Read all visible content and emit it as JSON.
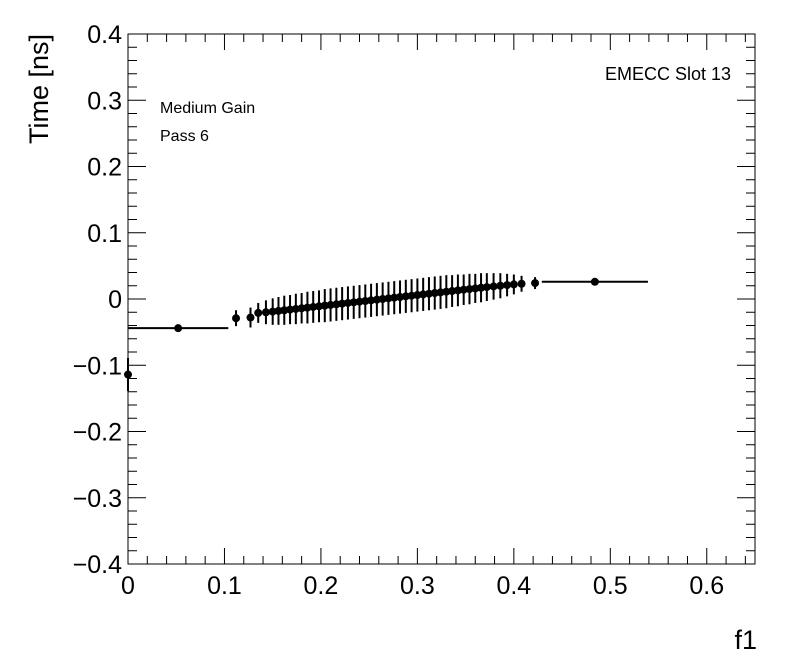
{
  "chart_data": {
    "type": "scatter",
    "title": "",
    "xlabel": "f1",
    "ylabel": "Time [ns]",
    "xlim": [
      0,
      0.65
    ],
    "ylim": [
      -0.4,
      0.4
    ],
    "x_ticks": [
      0,
      0.1,
      0.2,
      0.3,
      0.4,
      0.5,
      0.6
    ],
    "x_tick_labels": [
      "0",
      "0.1",
      "0.2",
      "0.3",
      "0.4",
      "0.5",
      "0.6"
    ],
    "y_ticks": [
      -0.4,
      -0.3,
      -0.2,
      -0.1,
      0,
      0.1,
      0.2,
      0.3,
      0.4
    ],
    "y_tick_labels": [
      "−0.4",
      "−0.3",
      "−0.2",
      "−0.1",
      "0",
      "0.1",
      "0.2",
      "0.3",
      "0.4"
    ],
    "grid": false,
    "annotations": [
      "Medium Gain",
      "Pass 6",
      "EMECC Slot 13"
    ],
    "series": [
      {
        "points": [
          {
            "x": 0.0,
            "y": -0.114,
            "xerr": 0.0,
            "yerr": 0.025
          },
          {
            "x": 0.052,
            "y": -0.044,
            "xerr": 0.052,
            "yerr": 0.004
          },
          {
            "x": 0.112,
            "y": -0.029,
            "xerr": 0.0,
            "yerr": 0.012
          },
          {
            "x": 0.127,
            "y": -0.028,
            "xerr": 0.0,
            "yerr": 0.015
          },
          {
            "x": 0.135,
            "y": -0.021,
            "xerr": 0.0,
            "yerr": 0.015
          },
          {
            "x": 0.143,
            "y": -0.02,
            "xerr": 0.0,
            "yerr": 0.018
          },
          {
            "x": 0.15,
            "y": -0.019,
            "xerr": 0.0,
            "yerr": 0.02
          },
          {
            "x": 0.156,
            "y": -0.018,
            "xerr": 0.0,
            "yerr": 0.021
          },
          {
            "x": 0.162,
            "y": -0.017,
            "xerr": 0.0,
            "yerr": 0.022
          },
          {
            "x": 0.168,
            "y": -0.016,
            "xerr": 0.0,
            "yerr": 0.022
          },
          {
            "x": 0.174,
            "y": -0.015,
            "xerr": 0.0,
            "yerr": 0.023
          },
          {
            "x": 0.18,
            "y": -0.014,
            "xerr": 0.0,
            "yerr": 0.023
          },
          {
            "x": 0.186,
            "y": -0.013,
            "xerr": 0.0,
            "yerr": 0.024
          },
          {
            "x": 0.192,
            "y": -0.012,
            "xerr": 0.0,
            "yerr": 0.024
          },
          {
            "x": 0.198,
            "y": -0.011,
            "xerr": 0.0,
            "yerr": 0.024
          },
          {
            "x": 0.204,
            "y": -0.01,
            "xerr": 0.0,
            "yerr": 0.025
          },
          {
            "x": 0.21,
            "y": -0.009,
            "xerr": 0.0,
            "yerr": 0.025
          },
          {
            "x": 0.216,
            "y": -0.008,
            "xerr": 0.0,
            "yerr": 0.025
          },
          {
            "x": 0.222,
            "y": -0.007,
            "xerr": 0.0,
            "yerr": 0.025
          },
          {
            "x": 0.228,
            "y": -0.006,
            "xerr": 0.0,
            "yerr": 0.025
          },
          {
            "x": 0.234,
            "y": -0.005,
            "xerr": 0.0,
            "yerr": 0.025
          },
          {
            "x": 0.24,
            "y": -0.004,
            "xerr": 0.0,
            "yerr": 0.025
          },
          {
            "x": 0.246,
            "y": -0.003,
            "xerr": 0.0,
            "yerr": 0.025
          },
          {
            "x": 0.252,
            "y": -0.002,
            "xerr": 0.0,
            "yerr": 0.025
          },
          {
            "x": 0.258,
            "y": -0.001,
            "xerr": 0.0,
            "yerr": 0.025
          },
          {
            "x": 0.264,
            "y": 0.0,
            "xerr": 0.0,
            "yerr": 0.025
          },
          {
            "x": 0.27,
            "y": 0.001,
            "xerr": 0.0,
            "yerr": 0.025
          },
          {
            "x": 0.276,
            "y": 0.002,
            "xerr": 0.0,
            "yerr": 0.025
          },
          {
            "x": 0.282,
            "y": 0.003,
            "xerr": 0.0,
            "yerr": 0.025
          },
          {
            "x": 0.288,
            "y": 0.004,
            "xerr": 0.0,
            "yerr": 0.025
          },
          {
            "x": 0.294,
            "y": 0.005,
            "xerr": 0.0,
            "yerr": 0.025
          },
          {
            "x": 0.3,
            "y": 0.006,
            "xerr": 0.0,
            "yerr": 0.025
          },
          {
            "x": 0.306,
            "y": 0.007,
            "xerr": 0.0,
            "yerr": 0.025
          },
          {
            "x": 0.312,
            "y": 0.008,
            "xerr": 0.0,
            "yerr": 0.025
          },
          {
            "x": 0.318,
            "y": 0.009,
            "xerr": 0.0,
            "yerr": 0.025
          },
          {
            "x": 0.324,
            "y": 0.01,
            "xerr": 0.0,
            "yerr": 0.025
          },
          {
            "x": 0.33,
            "y": 0.011,
            "xerr": 0.0,
            "yerr": 0.025
          },
          {
            "x": 0.336,
            "y": 0.012,
            "xerr": 0.0,
            "yerr": 0.024
          },
          {
            "x": 0.342,
            "y": 0.013,
            "xerr": 0.0,
            "yerr": 0.024
          },
          {
            "x": 0.348,
            "y": 0.014,
            "xerr": 0.0,
            "yerr": 0.023
          },
          {
            "x": 0.354,
            "y": 0.015,
            "xerr": 0.0,
            "yerr": 0.023
          },
          {
            "x": 0.36,
            "y": 0.016,
            "xerr": 0.0,
            "yerr": 0.022
          },
          {
            "x": 0.366,
            "y": 0.017,
            "xerr": 0.0,
            "yerr": 0.022
          },
          {
            "x": 0.372,
            "y": 0.018,
            "xerr": 0.0,
            "yerr": 0.021
          },
          {
            "x": 0.379,
            "y": 0.019,
            "xerr": 0.0,
            "yerr": 0.02
          },
          {
            "x": 0.386,
            "y": 0.02,
            "xerr": 0.0,
            "yerr": 0.019
          },
          {
            "x": 0.393,
            "y": 0.021,
            "xerr": 0.0,
            "yerr": 0.017
          },
          {
            "x": 0.4,
            "y": 0.022,
            "xerr": 0.0,
            "yerr": 0.015
          },
          {
            "x": 0.408,
            "y": 0.023,
            "xerr": 0.0,
            "yerr": 0.012
          },
          {
            "x": 0.422,
            "y": 0.024,
            "xerr": 0.0,
            "yerr": 0.009
          },
          {
            "x": 0.484,
            "y": 0.026,
            "xerr": 0.055,
            "yerr": 0.005
          }
        ]
      }
    ]
  }
}
